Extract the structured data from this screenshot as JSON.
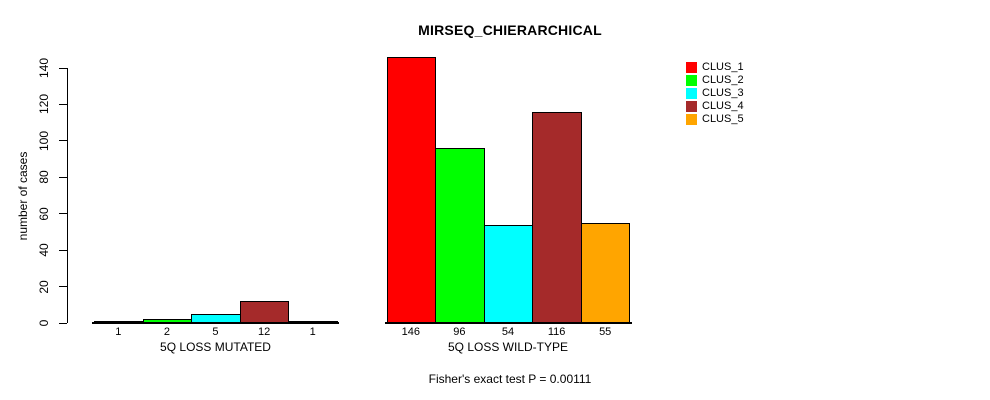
{
  "chart_data": {
    "type": "bar",
    "title": "MIRSEQ_CHIERARCHICAL",
    "ylabel": "number of cases",
    "xlabel": "",
    "ylim": [
      0,
      140
    ],
    "yticks": [
      0,
      20,
      40,
      60,
      80,
      100,
      120,
      140
    ],
    "grid": false,
    "legend_position": "top-right",
    "categories": [
      "CLUS_1",
      "CLUS_2",
      "CLUS_3",
      "CLUS_4",
      "CLUS_5"
    ],
    "colors": [
      "#FF0000",
      "#00FF00",
      "#00FFFF",
      "#A52A2A",
      "#FFA500"
    ],
    "series": [
      {
        "name": "5Q LOSS MUTATED",
        "values": [
          1,
          2,
          5,
          12,
          1
        ]
      },
      {
        "name": "5Q LOSS WILD-TYPE",
        "values": [
          146,
          96,
          54,
          116,
          55
        ]
      }
    ],
    "bar_value_labels_shown": true,
    "annotation": "Fisher's exact test P = 0.00111"
  }
}
